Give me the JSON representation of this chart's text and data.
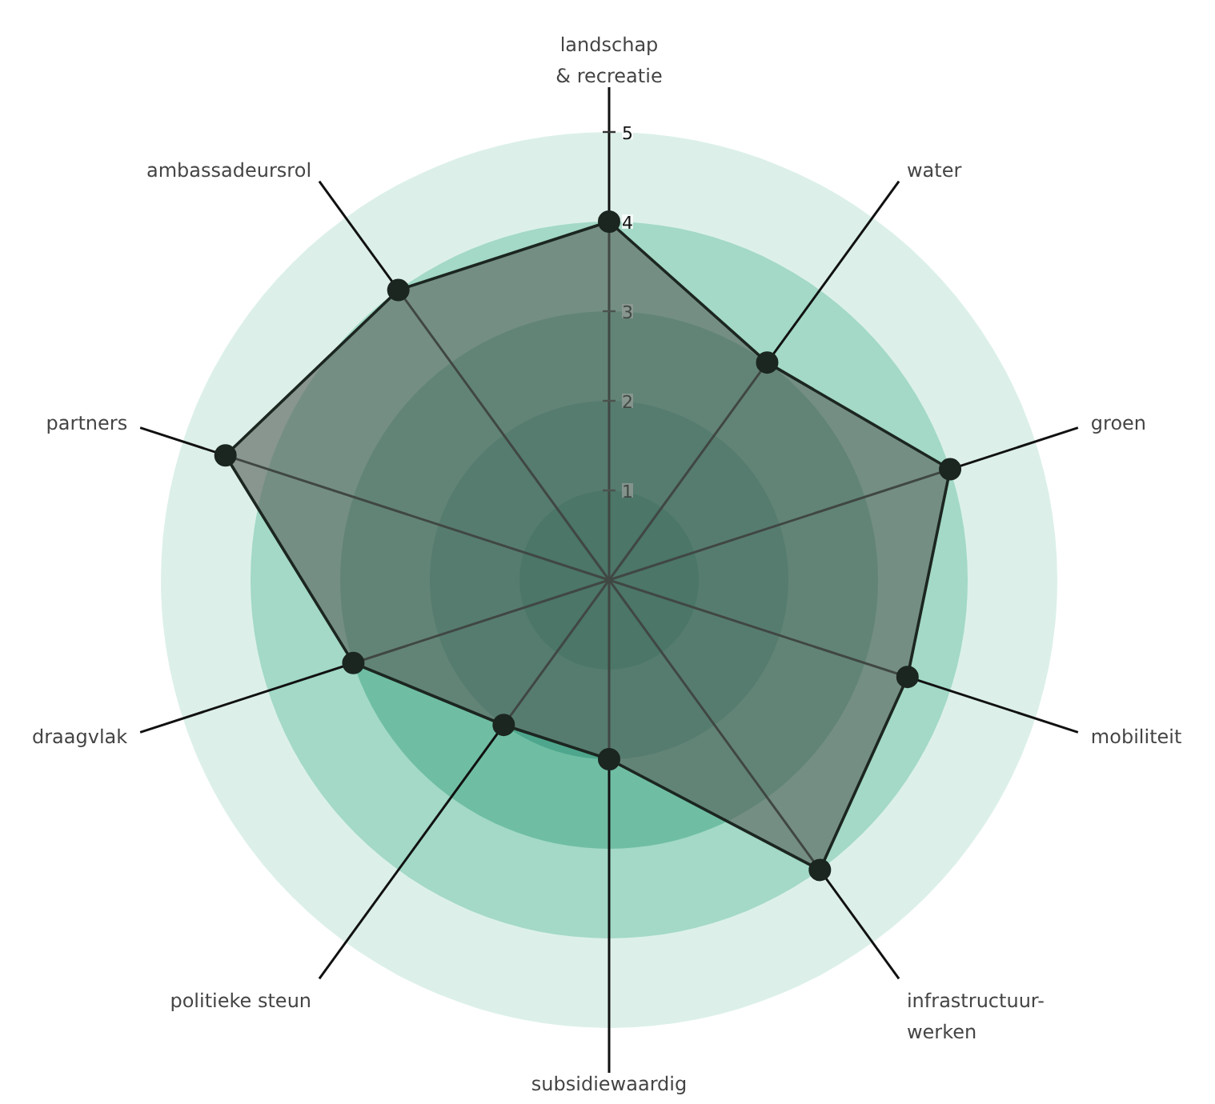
{
  "chart_data": {
    "type": "radar",
    "categories": [
      "landschap\n& recreatie",
      "water",
      "groen",
      "mobiliteit",
      "infrastructuur-\nwerken",
      "subsidiewaardig",
      "politieke steun",
      "draagvlak",
      "partners",
      "ambassadeursrol"
    ],
    "series": [
      {
        "color": "#1c2621",
        "values": [
          4,
          3,
          4,
          3.5,
          4,
          2,
          2,
          3,
          4.5,
          4
        ]
      }
    ],
    "ylim": [
      0,
      5
    ],
    "yticks": [
      1,
      2,
      3,
      4,
      5
    ],
    "grid": true,
    "marker": "circle"
  }
}
